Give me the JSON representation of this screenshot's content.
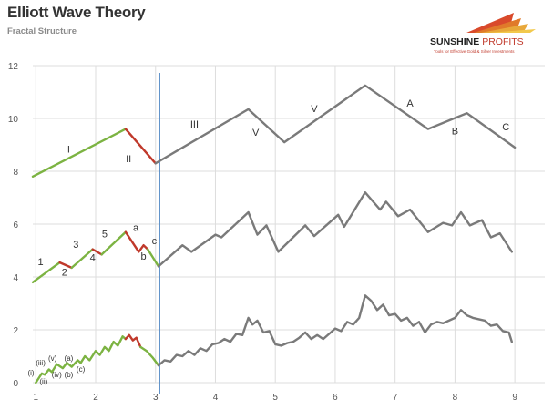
{
  "header": {
    "title": "Elliott Wave Theory",
    "subtitle": "Fractal Structure"
  },
  "logo": {
    "name_part1": "SUNSHINE",
    "name_part2": "PROFITS",
    "tagline": "Tools for Effective Gold & Silver Investments"
  },
  "colors": {
    "impulse_green": "#7cb342",
    "correction_red": "#c0392b",
    "wave_gray": "#7a7a7a",
    "divider_blue": "#5b8fc7",
    "grid": "#dddddd"
  },
  "chart_data": {
    "type": "line",
    "xlim": [
      0.95,
      9.5
    ],
    "ylim": [
      0,
      12
    ],
    "xticks": [
      1,
      2,
      3,
      4,
      5,
      6,
      7,
      8,
      9
    ],
    "yticks": [
      0,
      2,
      4,
      6,
      8,
      10,
      12
    ],
    "grid": true,
    "divider_x": 3.07,
    "series": [
      {
        "segments": [
          {
            "color": "impulse_green",
            "points": [
              [
                0.95,
                7.8
              ],
              [
                2.5,
                9.6
              ]
            ]
          },
          {
            "color": "correction_red",
            "points": [
              [
                2.5,
                9.6
              ],
              [
                3.0,
                8.3
              ]
            ]
          },
          {
            "color": "wave_gray",
            "points": [
              [
                3.0,
                8.3
              ],
              [
                4.55,
                10.35
              ],
              [
                5.15,
                9.1
              ],
              [
                6.5,
                11.25
              ],
              [
                7.55,
                9.6
              ],
              [
                8.2,
                10.2
              ],
              [
                9.0,
                8.9
              ]
            ]
          }
        ]
      },
      {
        "segments": [
          {
            "color": "impulse_green",
            "points": [
              [
                0.95,
                3.8
              ],
              [
                1.4,
                4.55
              ]
            ]
          },
          {
            "color": "correction_red",
            "points": [
              [
                1.4,
                4.55
              ],
              [
                1.6,
                4.35
              ]
            ]
          },
          {
            "color": "impulse_green",
            "points": [
              [
                1.6,
                4.35
              ],
              [
                1.95,
                5.05
              ]
            ]
          },
          {
            "color": "correction_red",
            "points": [
              [
                1.95,
                5.05
              ],
              [
                2.1,
                4.85
              ]
            ]
          },
          {
            "color": "impulse_green",
            "points": [
              [
                2.1,
                4.85
              ],
              [
                2.5,
                5.7
              ]
            ]
          },
          {
            "color": "correction_red",
            "points": [
              [
                2.5,
                5.7
              ],
              [
                2.72,
                4.95
              ],
              [
                2.8,
                5.2
              ],
              [
                2.87,
                5.05
              ]
            ]
          },
          {
            "color": "impulse_green",
            "points": [
              [
                2.87,
                5.05
              ],
              [
                3.05,
                4.4
              ]
            ]
          },
          {
            "color": "wave_gray",
            "points": [
              [
                3.05,
                4.4
              ],
              [
                3.45,
                5.2
              ],
              [
                3.6,
                4.95
              ],
              [
                4.0,
                5.6
              ],
              [
                4.1,
                5.5
              ],
              [
                4.55,
                6.45
              ],
              [
                4.7,
                5.6
              ],
              [
                4.85,
                5.95
              ],
              [
                5.05,
                4.95
              ],
              [
                5.5,
                5.95
              ],
              [
                5.65,
                5.55
              ],
              [
                6.05,
                6.35
              ],
              [
                6.15,
                5.9
              ],
              [
                6.5,
                7.2
              ],
              [
                6.75,
                6.55
              ],
              [
                6.85,
                6.85
              ],
              [
                7.05,
                6.3
              ],
              [
                7.25,
                6.55
              ],
              [
                7.55,
                5.7
              ],
              [
                7.8,
                6.05
              ],
              [
                7.95,
                5.95
              ],
              [
                8.1,
                6.45
              ],
              [
                8.25,
                5.95
              ],
              [
                8.45,
                6.15
              ],
              [
                8.6,
                5.5
              ],
              [
                8.75,
                5.65
              ],
              [
                8.95,
                4.95
              ]
            ]
          }
        ]
      },
      {
        "segments": [
          {
            "color": "impulse_green",
            "points": [
              [
                1.0,
                0.0
              ],
              [
                1.1,
                0.35
              ],
              [
                1.15,
                0.3
              ],
              [
                1.22,
                0.5
              ],
              [
                1.27,
                0.4
              ],
              [
                1.35,
                0.7
              ],
              [
                1.45,
                0.55
              ],
              [
                1.52,
                0.75
              ],
              [
                1.6,
                0.6
              ],
              [
                1.7,
                0.85
              ],
              [
                1.75,
                0.75
              ],
              [
                1.82,
                1.0
              ],
              [
                1.9,
                0.85
              ],
              [
                2.0,
                1.2
              ],
              [
                2.07,
                1.05
              ],
              [
                2.15,
                1.35
              ],
              [
                2.22,
                1.2
              ],
              [
                2.3,
                1.55
              ],
              [
                2.37,
                1.4
              ],
              [
                2.45,
                1.75
              ],
              [
                2.5,
                1.65
              ]
            ]
          },
          {
            "color": "correction_red",
            "points": [
              [
                2.5,
                1.65
              ],
              [
                2.56,
                1.8
              ],
              [
                2.62,
                1.6
              ],
              [
                2.68,
                1.7
              ],
              [
                2.75,
                1.35
              ]
            ]
          },
          {
            "color": "impulse_green",
            "points": [
              [
                2.75,
                1.35
              ],
              [
                2.85,
                1.2
              ],
              [
                2.95,
                0.95
              ],
              [
                3.05,
                0.65
              ]
            ]
          },
          {
            "color": "wave_gray",
            "points": [
              [
                3.05,
                0.65
              ],
              [
                3.15,
                0.85
              ],
              [
                3.25,
                0.8
              ],
              [
                3.35,
                1.05
              ],
              [
                3.45,
                1.0
              ],
              [
                3.55,
                1.2
              ],
              [
                3.65,
                1.05
              ],
              [
                3.75,
                1.3
              ],
              [
                3.85,
                1.2
              ],
              [
                3.95,
                1.45
              ],
              [
                4.05,
                1.5
              ],
              [
                4.15,
                1.65
              ],
              [
                4.25,
                1.55
              ],
              [
                4.35,
                1.85
              ],
              [
                4.45,
                1.8
              ],
              [
                4.55,
                2.45
              ],
              [
                4.62,
                2.2
              ],
              [
                4.7,
                2.35
              ],
              [
                4.8,
                1.9
              ],
              [
                4.9,
                1.95
              ],
              [
                5.0,
                1.45
              ],
              [
                5.1,
                1.4
              ],
              [
                5.2,
                1.5
              ],
              [
                5.3,
                1.55
              ],
              [
                5.4,
                1.7
              ],
              [
                5.5,
                1.9
              ],
              [
                5.6,
                1.65
              ],
              [
                5.7,
                1.8
              ],
              [
                5.8,
                1.65
              ],
              [
                5.9,
                1.85
              ],
              [
                6.0,
                2.05
              ],
              [
                6.1,
                1.95
              ],
              [
                6.2,
                2.3
              ],
              [
                6.3,
                2.2
              ],
              [
                6.4,
                2.45
              ],
              [
                6.5,
                3.3
              ],
              [
                6.6,
                3.1
              ],
              [
                6.7,
                2.75
              ],
              [
                6.8,
                2.95
              ],
              [
                6.9,
                2.55
              ],
              [
                7.0,
                2.6
              ],
              [
                7.1,
                2.35
              ],
              [
                7.2,
                2.45
              ],
              [
                7.3,
                2.15
              ],
              [
                7.4,
                2.3
              ],
              [
                7.5,
                1.9
              ],
              [
                7.6,
                2.2
              ],
              [
                7.7,
                2.3
              ],
              [
                7.8,
                2.25
              ],
              [
                7.9,
                2.35
              ],
              [
                8.0,
                2.45
              ],
              [
                8.1,
                2.75
              ],
              [
                8.2,
                2.55
              ],
              [
                8.3,
                2.45
              ],
              [
                8.4,
                2.4
              ],
              [
                8.5,
                2.35
              ],
              [
                8.6,
                2.15
              ],
              [
                8.7,
                2.2
              ],
              [
                8.8,
                1.95
              ],
              [
                8.9,
                1.9
              ],
              [
                8.95,
                1.55
              ]
            ]
          }
        ]
      }
    ],
    "wave_labels": [
      {
        "text": "I",
        "x": 1.55,
        "y": 8.7
      },
      {
        "text": "II",
        "x": 2.55,
        "y": 8.35
      },
      {
        "text": "III",
        "x": 3.65,
        "y": 9.65
      },
      {
        "text": "IV",
        "x": 4.65,
        "y": 9.35
      },
      {
        "text": "V",
        "x": 5.65,
        "y": 10.25
      },
      {
        "text": "A",
        "x": 7.25,
        "y": 10.45
      },
      {
        "text": "B",
        "x": 8.0,
        "y": 9.4
      },
      {
        "text": "C",
        "x": 8.85,
        "y": 9.55
      },
      {
        "text": "1",
        "x": 1.08,
        "y": 4.45
      },
      {
        "text": "2",
        "x": 1.48,
        "y": 4.05
      },
      {
        "text": "3",
        "x": 1.67,
        "y": 5.1
      },
      {
        "text": "4",
        "x": 1.95,
        "y": 4.6
      },
      {
        "text": "5",
        "x": 2.15,
        "y": 5.5
      },
      {
        "text": "a",
        "x": 2.67,
        "y": 5.75
      },
      {
        "text": "b",
        "x": 2.8,
        "y": 4.65
      },
      {
        "text": "c",
        "x": 2.98,
        "y": 5.25
      },
      {
        "text": "(i)",
        "x": 0.92,
        "y": 0.28
      },
      {
        "text": "(ii)",
        "x": 1.13,
        "y": -0.05
      },
      {
        "text": "(iii)",
        "x": 1.08,
        "y": 0.65
      },
      {
        "text": "(iv)",
        "x": 1.35,
        "y": 0.2
      },
      {
        "text": "(v)",
        "x": 1.28,
        "y": 0.82
      },
      {
        "text": "(a)",
        "x": 1.55,
        "y": 0.82
      },
      {
        "text": "(b)",
        "x": 1.55,
        "y": 0.2
      },
      {
        "text": "(c)",
        "x": 1.75,
        "y": 0.42
      }
    ]
  }
}
